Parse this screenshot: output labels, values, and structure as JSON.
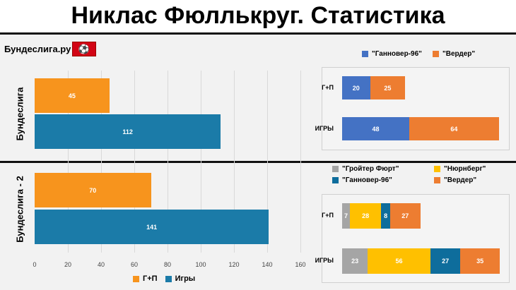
{
  "title": "Никлас Фюллькруг.  Статистика",
  "source": "Бундеслига.ру",
  "colors": {
    "left_gp": "#f7941d",
    "left_games": "#1b7ba8",
    "hannover_top": "#4472c4",
    "werder": "#ed7d31",
    "greuther": "#a5a5a5",
    "nurnberg": "#ffc000",
    "hannover_bottom": "#0e6d9c"
  },
  "chart_data": [
    {
      "type": "bar",
      "orientation": "horizontal",
      "groups": [
        "Бундеслига",
        "Бундеслига - 2"
      ],
      "series": [
        {
          "name": "Г+П",
          "values": [
            45,
            70
          ]
        },
        {
          "name": "Игры",
          "values": [
            112,
            141
          ]
        }
      ],
      "xlim": [
        0,
        160
      ],
      "xticks": [
        "0",
        "20",
        "40",
        "60",
        "80",
        "100",
        "120",
        "140",
        "160"
      ],
      "legend": "bottom"
    },
    {
      "type": "bar",
      "stacked": true,
      "title": "Бундеслига",
      "categories": [
        "Г+П",
        "ИГРЫ"
      ],
      "series": [
        {
          "name": "\"Ганновер-96\"",
          "values": [
            20,
            48
          ]
        },
        {
          "name": "\"Вердер\"",
          "values": [
            25,
            64
          ]
        }
      ],
      "legend": "top"
    },
    {
      "type": "bar",
      "stacked": true,
      "title": "Бундеслига - 2",
      "categories": [
        "Г+П",
        "ИГРЫ"
      ],
      "series": [
        {
          "name": "\"Гройтер Фюрт\"",
          "values": [
            7,
            23
          ]
        },
        {
          "name": "\"Нюрнберг\"",
          "values": [
            28,
            56
          ]
        },
        {
          "name": "\"Ганновер-96\"",
          "values": [
            8,
            27
          ]
        },
        {
          "name": "\"Вердер\"",
          "values": [
            27,
            35
          ]
        }
      ],
      "legend": "top"
    }
  ]
}
